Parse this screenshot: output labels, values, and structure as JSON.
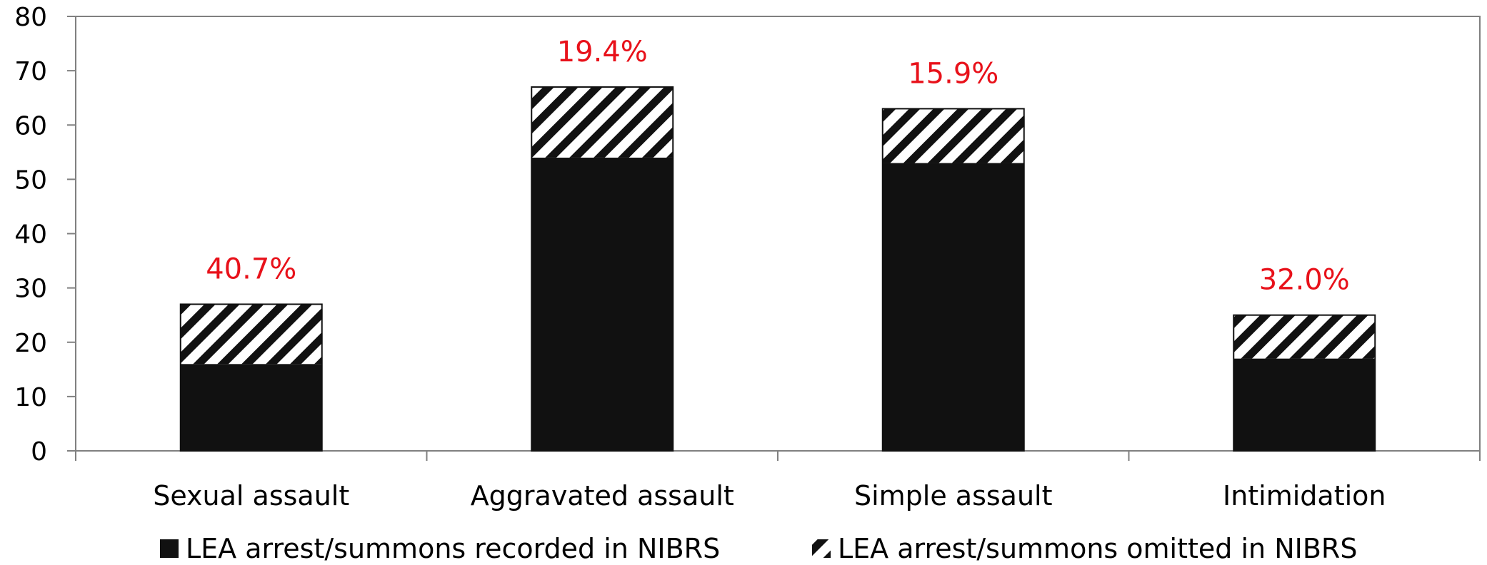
{
  "chart_data": {
    "type": "bar",
    "stacked": true,
    "categories": [
      "Sexual assault",
      "Aggravated assault",
      "Simple assault",
      "Intimidation"
    ],
    "series": [
      {
        "name": "LEA arrest/summons recorded in NIBRS",
        "values": [
          16,
          54,
          53,
          17
        ],
        "color": "#111111",
        "pattern": "solid"
      },
      {
        "name": "LEA arrest/summons omitted in NIBRS",
        "values": [
          11,
          13,
          10,
          8
        ],
        "color": "#111111",
        "pattern": "diagonal-hatch"
      }
    ],
    "annotations": [
      "40.7%",
      "19.4%",
      "15.9%",
      "32.0%"
    ],
    "annotation_color": "#e8111a",
    "ylim": [
      0,
      80
    ],
    "yticks": [
      0,
      10,
      20,
      30,
      40,
      50,
      60,
      70,
      80
    ],
    "grid": false,
    "legend_position": "bottom",
    "title": "",
    "xlabel": "",
    "ylabel": ""
  }
}
